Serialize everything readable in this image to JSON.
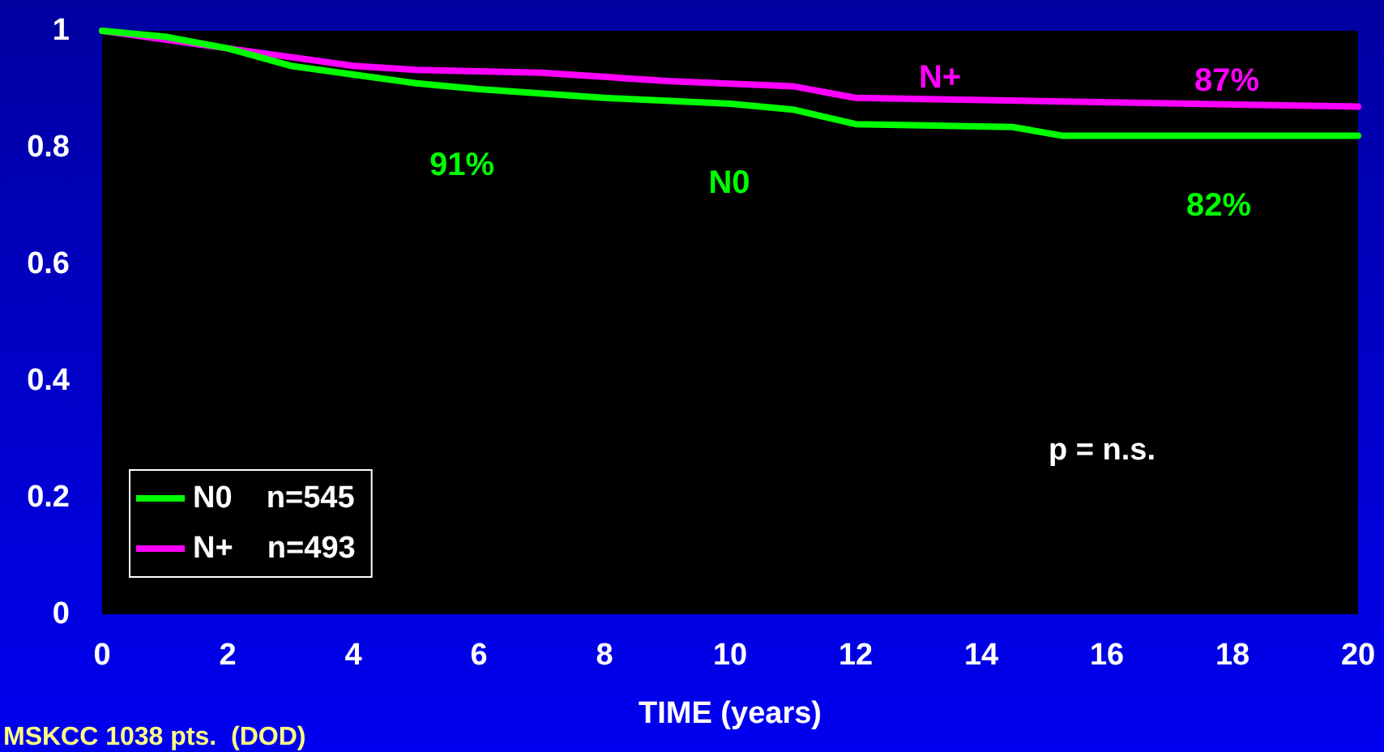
{
  "chart_data": {
    "type": "line",
    "xlabel": "TIME (years)",
    "series": [
      {
        "name": "N0    n=545",
        "color": "#00ff00",
        "x": [
          0,
          1,
          2,
          3,
          4,
          5,
          6,
          8,
          10,
          11,
          12,
          14.5,
          15.3,
          20
        ],
        "values": [
          1.0,
          0.99,
          0.97,
          0.94,
          0.925,
          0.91,
          0.9,
          0.885,
          0.875,
          0.865,
          0.84,
          0.835,
          0.82,
          0.82
        ]
      },
      {
        "name": "N+    n=493",
        "color": "#ff00ff",
        "x": [
          0,
          1,
          2,
          3,
          4,
          5,
          7,
          9,
          11,
          12,
          20
        ],
        "values": [
          1.0,
          0.985,
          0.97,
          0.955,
          0.94,
          0.933,
          0.928,
          0.914,
          0.905,
          0.885,
          0.87
        ]
      }
    ],
    "xlim": [
      0,
      20
    ],
    "xticks": [
      0,
      2,
      4,
      6,
      8,
      10,
      12,
      14,
      16,
      18,
      20
    ],
    "ylim": [
      0,
      1
    ],
    "yticks": [
      0,
      0.2,
      0.4,
      0.6,
      0.8,
      1
    ],
    "annotations": [
      "91%",
      "N0",
      "N+",
      "87%",
      "82%",
      "p = n.s.",
      "MSKCC 1038 pts.  (DOD)"
    ],
    "legend": "bottom left",
    "grid": false,
    "marker": "none",
    "line_style": "solid"
  }
}
